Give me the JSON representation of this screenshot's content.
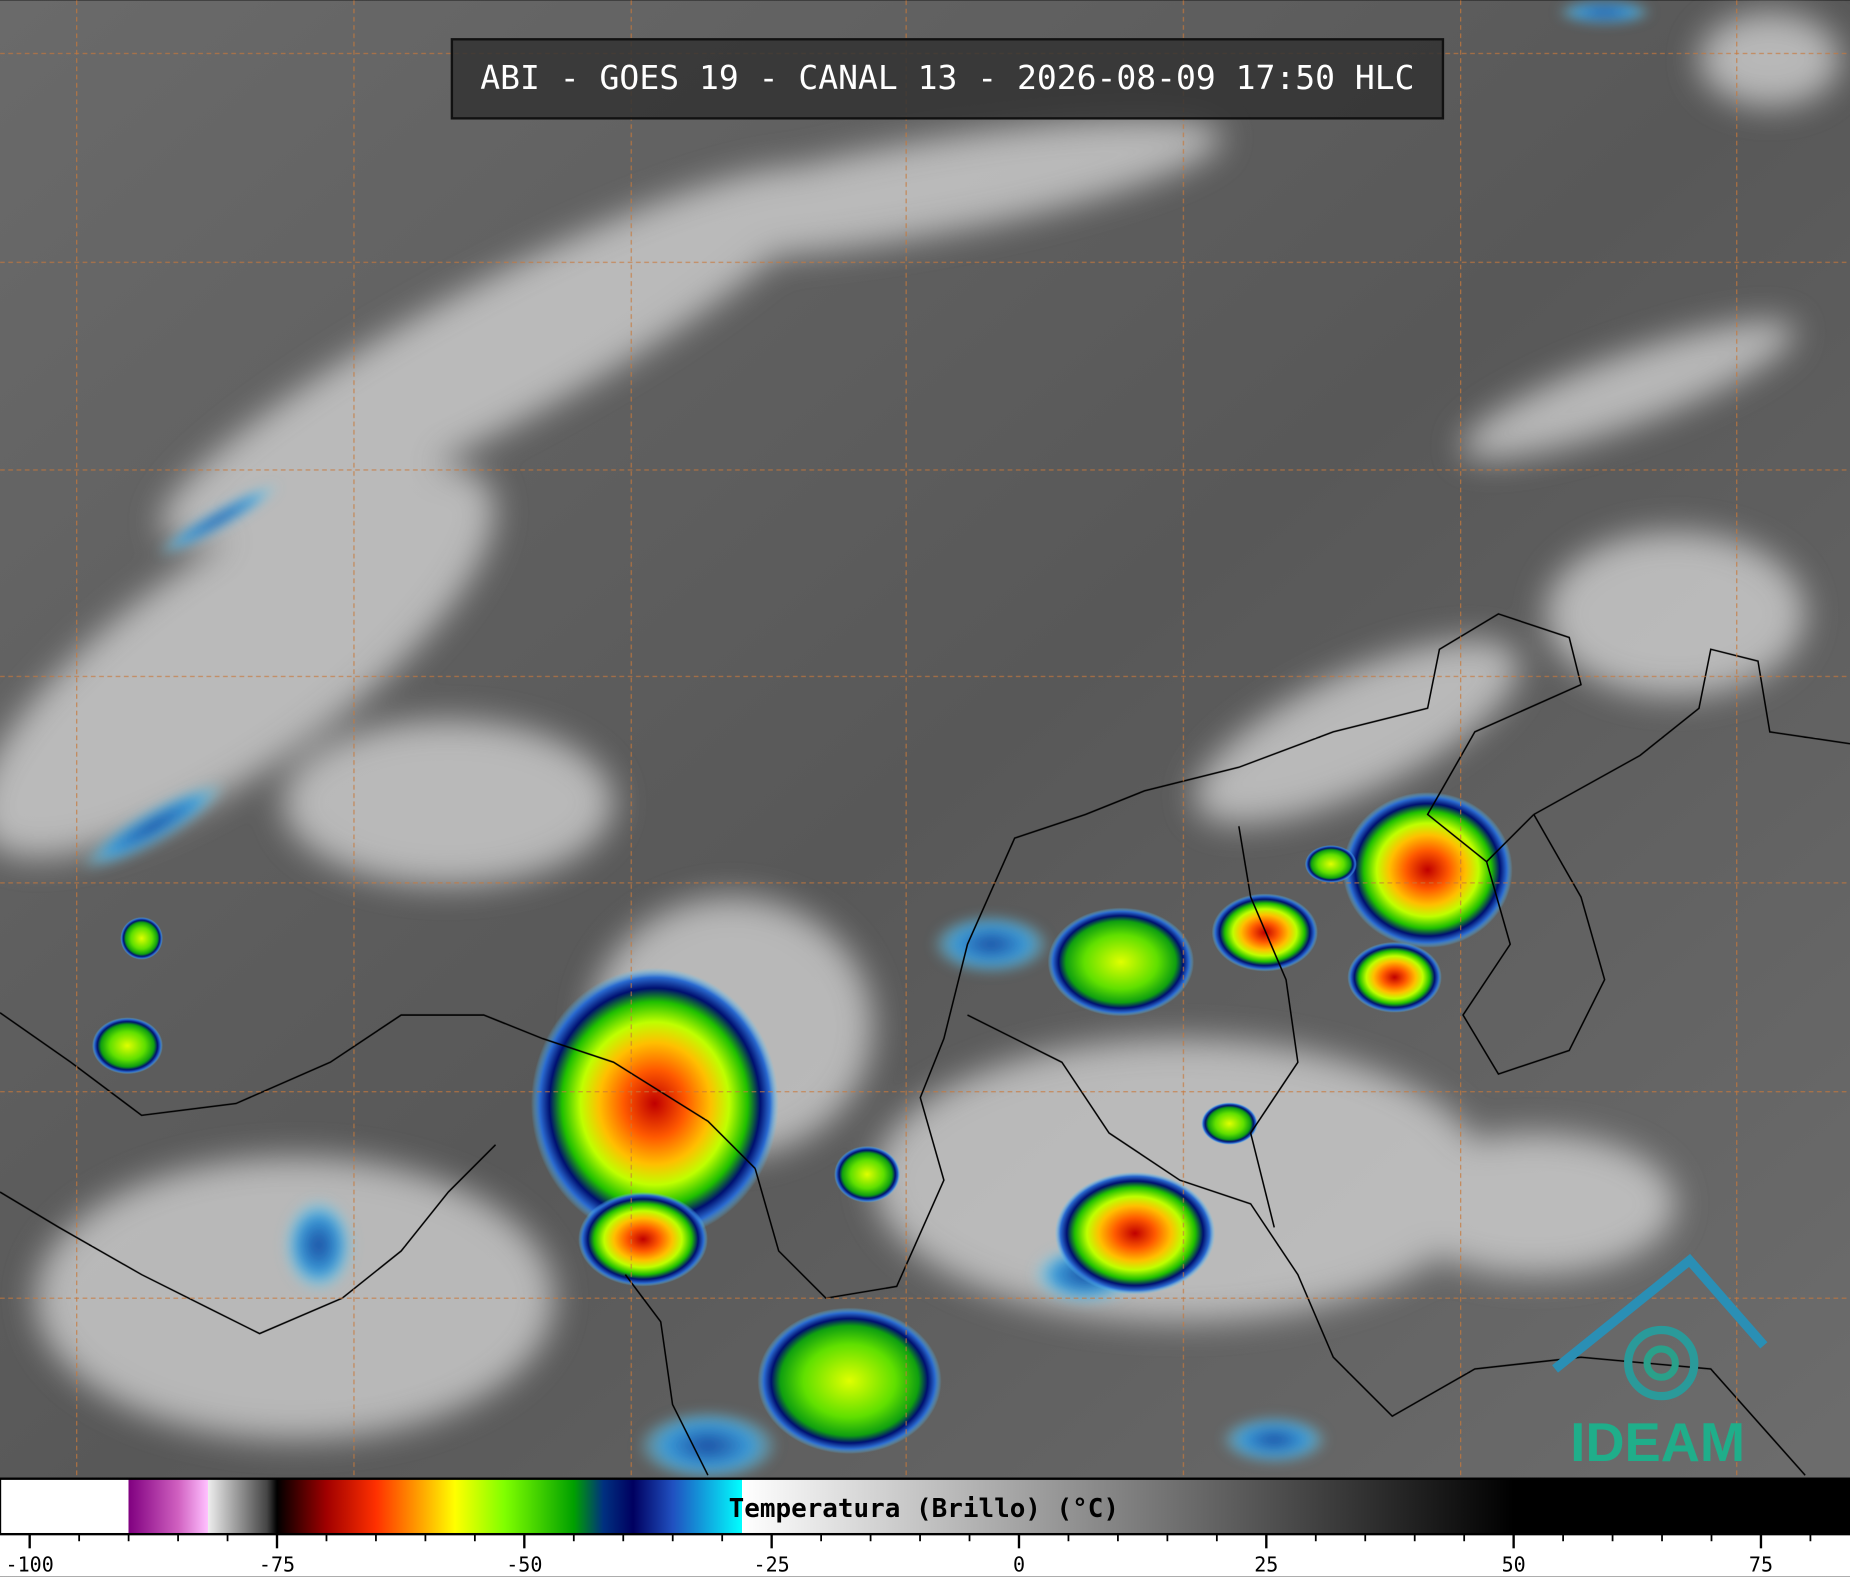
{
  "header": {
    "title": "ABI - GOES 19 - CANAL 13 - 2026-08-09 17:50 HLC"
  },
  "colorbar": {
    "label": "Temperatura (Brillo) (°C)",
    "range": [
      -103,
      84
    ],
    "ticks": [
      -100,
      -75,
      -50,
      -25,
      0,
      25,
      50,
      75
    ],
    "minor_ticks": [
      -95,
      -90,
      -85,
      -80,
      -70,
      -65,
      -60,
      -55,
      -45,
      -40,
      -35,
      -30,
      -20,
      -15,
      -10,
      -5,
      5,
      10,
      15,
      20,
      30,
      35,
      40,
      45,
      55,
      60,
      65,
      70,
      80
    ],
    "stops": [
      [
        -103,
        "#ffffff"
      ],
      [
        -90,
        "#ffffff"
      ],
      [
        -90,
        "#800080"
      ],
      [
        -85,
        "#d060c0"
      ],
      [
        -82,
        "#ffc0ff"
      ],
      [
        -82,
        "#eeeeee"
      ],
      [
        -76,
        "#444444"
      ],
      [
        -75,
        "#000000"
      ],
      [
        -70,
        "#a00000"
      ],
      [
        -65,
        "#ff3000"
      ],
      [
        -60,
        "#ffb000"
      ],
      [
        -57,
        "#ffff00"
      ],
      [
        -52,
        "#80ff00"
      ],
      [
        -45,
        "#00a000"
      ],
      [
        -42,
        "#003080"
      ],
      [
        -39,
        "#000060"
      ],
      [
        -35,
        "#2050c0"
      ],
      [
        -28,
        "#00ffff"
      ],
      [
        -28,
        "#ffffff"
      ],
      [
        50,
        "#000000"
      ],
      [
        84,
        "#000000"
      ]
    ]
  },
  "logo": {
    "text": "IDEAM"
  }
}
